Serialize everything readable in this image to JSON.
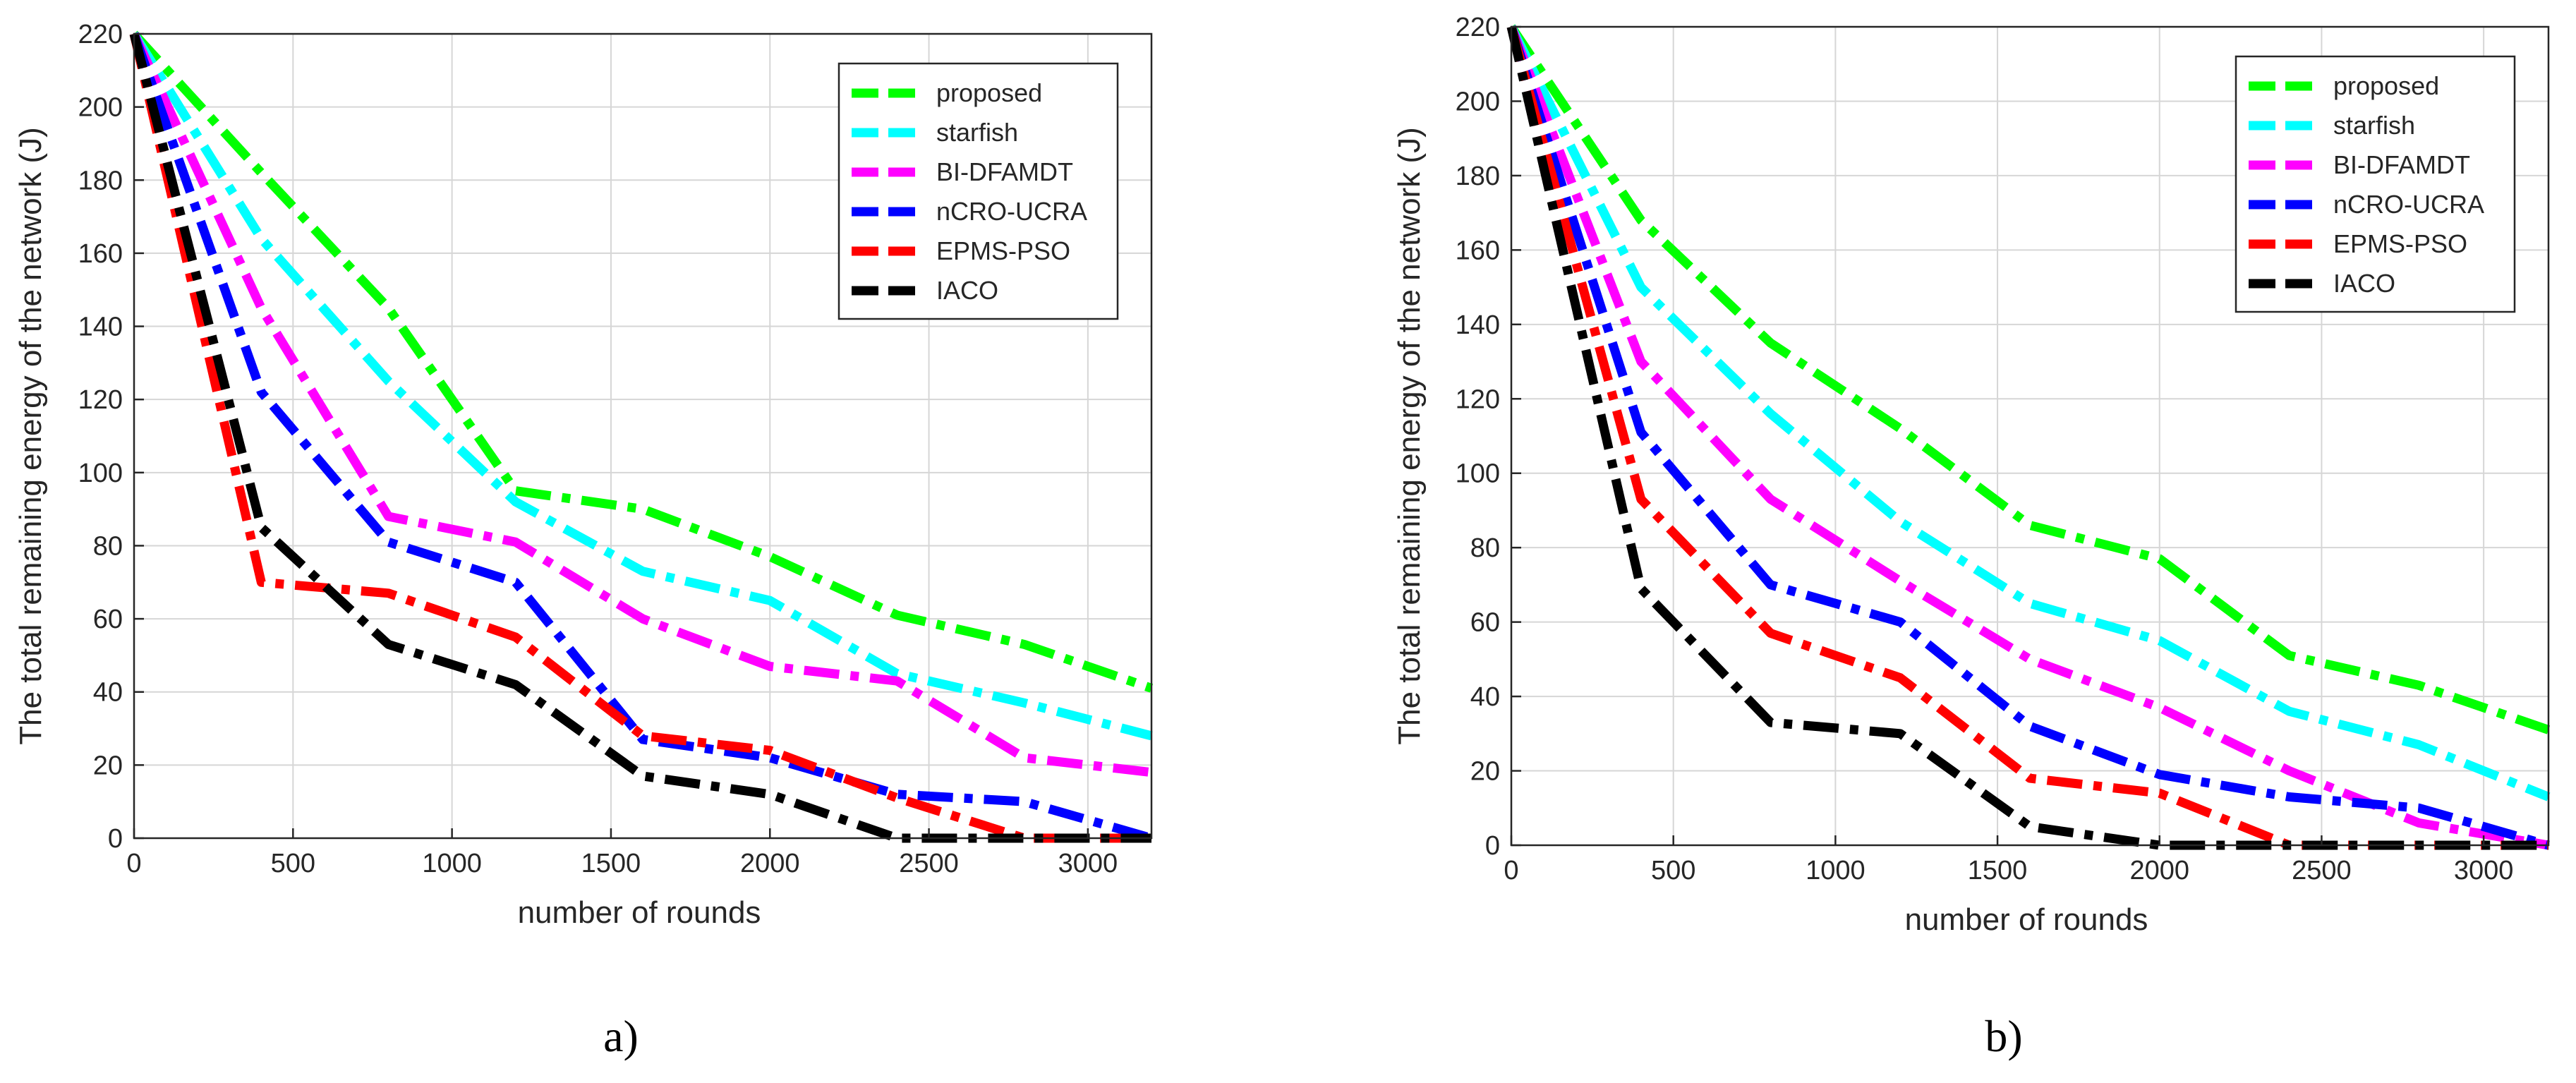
{
  "chart_data": [
    {
      "type": "line",
      "title": "",
      "xlabel": "number of rounds",
      "ylabel": "The total remaining energy of the network (J)",
      "caption": "a)",
      "xlim": [
        0,
        3200
      ],
      "ylim": [
        0,
        220
      ],
      "xticks": [
        0,
        500,
        1000,
        1500,
        2000,
        2500,
        3000
      ],
      "yticks": [
        0,
        20,
        40,
        60,
        80,
        100,
        120,
        140,
        160,
        180,
        200,
        220
      ],
      "grid": true,
      "legend_position": "top-right",
      "x": [
        0,
        400,
        800,
        1200,
        1600,
        2000,
        2400,
        2800,
        3200
      ],
      "series": [
        {
          "name": "proposed",
          "color": "#00ff00",
          "values": [
            220,
            182,
            145,
            95,
            90,
            77,
            61,
            53,
            41
          ]
        },
        {
          "name": "starfish",
          "color": "#00ffff",
          "values": [
            220,
            164,
            125,
            92,
            73,
            65,
            45,
            37,
            28
          ]
        },
        {
          "name": "BI-DFAMDT",
          "color": "#ff00ff",
          "values": [
            220,
            145,
            88,
            81,
            60,
            47,
            43,
            22,
            18
          ]
        },
        {
          "name": "nCRO-UCRA",
          "color": "#0000ff",
          "values": [
            220,
            122,
            81,
            70,
            27,
            22,
            12,
            10,
            0
          ]
        },
        {
          "name": "EPMS-PSO",
          "color": "#ff0000",
          "values": [
            220,
            70,
            67,
            55,
            28,
            24,
            11,
            0,
            0
          ]
        },
        {
          "name": "IACO",
          "color": "#000000",
          "values": [
            220,
            85,
            53,
            42,
            17,
            12,
            0,
            0,
            0
          ]
        }
      ]
    },
    {
      "type": "line",
      "title": "",
      "xlabel": "number of rounds",
      "ylabel": "The total remaining energy of the network (J)",
      "caption": "b)",
      "xlim": [
        0,
        3200
      ],
      "ylim": [
        0,
        220
      ],
      "xticks": [
        0,
        500,
        1000,
        1500,
        2000,
        2500,
        3000
      ],
      "yticks": [
        0,
        20,
        40,
        60,
        80,
        100,
        120,
        140,
        160,
        180,
        200,
        220
      ],
      "grid": true,
      "legend_position": "top-right",
      "x": [
        0,
        400,
        800,
        1200,
        1600,
        2000,
        2400,
        2800,
        3200
      ],
      "series": [
        {
          "name": "proposed",
          "color": "#00ff00",
          "values": [
            220,
            168,
            135,
            112,
            86,
            77,
            51,
            43,
            31
          ]
        },
        {
          "name": "starfish",
          "color": "#00ffff",
          "values": [
            220,
            150,
            116,
            87,
            65,
            55,
            36,
            27,
            13
          ]
        },
        {
          "name": "BI-DFAMDT",
          "color": "#ff00ff",
          "values": [
            220,
            130,
            93,
            71,
            50,
            37,
            20,
            6,
            0
          ]
        },
        {
          "name": "nCRO-UCRA",
          "color": "#0000ff",
          "values": [
            220,
            111,
            70,
            60,
            32,
            19,
            13,
            10,
            0
          ]
        },
        {
          "name": "EPMS-PSO",
          "color": "#ff0000",
          "values": [
            220,
            93,
            57,
            45,
            18,
            14,
            0,
            0,
            0
          ]
        },
        {
          "name": "IACO",
          "color": "#000000",
          "values": [
            220,
            69,
            33,
            30,
            5,
            0,
            0,
            0,
            0
          ]
        }
      ]
    }
  ]
}
